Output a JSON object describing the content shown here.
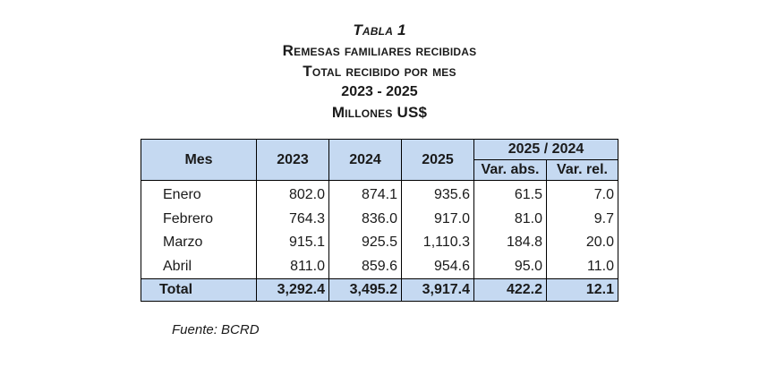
{
  "header": {
    "table_label": "Tabla 1",
    "title": "Remesas familiares recibidas",
    "subtitle": "Total recibido por mes",
    "period": "2023 - 2025",
    "units": "Millones US$"
  },
  "table": {
    "col_mes": "Mes",
    "col_2023": "2023",
    "col_2024": "2024",
    "col_2025": "2025",
    "col_group": "2025 / 2024",
    "col_var_abs": "Var. abs.",
    "col_var_rel": "Var. rel.",
    "rows": [
      {
        "mes": "Enero",
        "y2023": "802.0",
        "y2024": "874.1",
        "y2025": "935.6",
        "var_abs": "61.5",
        "var_rel": "7.0"
      },
      {
        "mes": "Febrero",
        "y2023": "764.3",
        "y2024": "836.0",
        "y2025": "917.0",
        "var_abs": "81.0",
        "var_rel": "9.7"
      },
      {
        "mes": "Marzo",
        "y2023": "915.1",
        "y2024": "925.5",
        "y2025": "1,110.3",
        "var_abs": "184.8",
        "var_rel": "20.0"
      },
      {
        "mes": "Abril",
        "y2023": "811.0",
        "y2024": "859.6",
        "y2025": "954.6",
        "var_abs": "95.0",
        "var_rel": "11.0"
      }
    ],
    "total": {
      "mes": "Total",
      "y2023": "3,292.4",
      "y2024": "3,495.2",
      "y2025": "3,917.4",
      "var_abs": "422.2",
      "var_rel": "12.1"
    }
  },
  "footer": {
    "source": "Fuente: BCRD"
  }
}
